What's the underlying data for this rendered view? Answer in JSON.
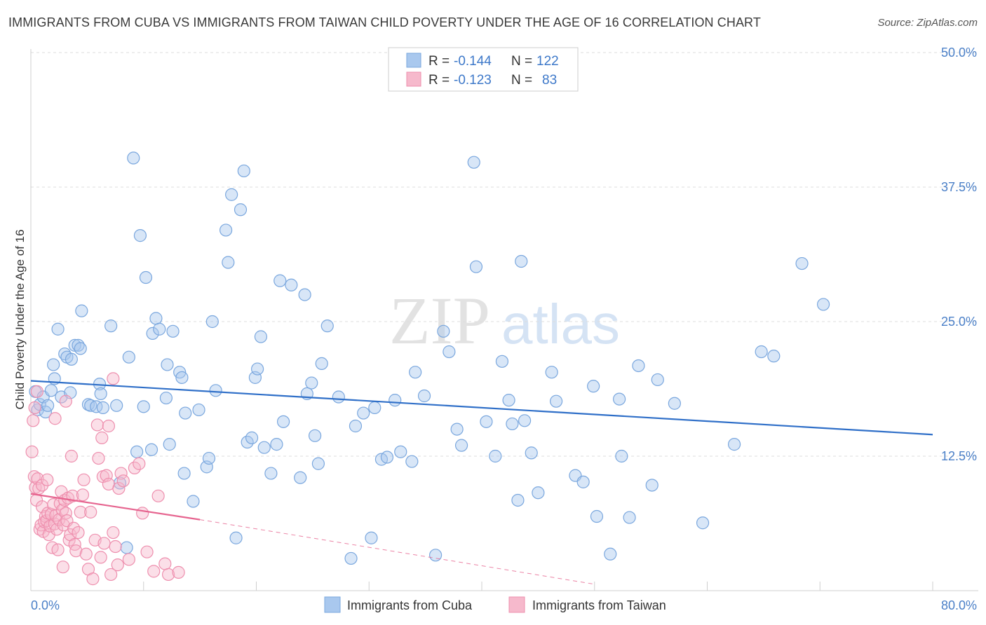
{
  "title": "IMMIGRANTS FROM CUBA VS IMMIGRANTS FROM TAIWAN CHILD POVERTY UNDER THE AGE OF 16 CORRELATION CHART",
  "source": "Source: ZipAtlas.com",
  "watermark": {
    "zip": "ZIP",
    "atlas": "atlas"
  },
  "colors": {
    "cuba_fill": "#a9c8ee",
    "cuba_stroke": "#7aa7de",
    "cuba_line": "#2f6fc8",
    "taiwan_fill": "#f6b9cc",
    "taiwan_stroke": "#ee8fae",
    "taiwan_line": "#e6648f",
    "axis_label": "#4a7fc7",
    "grid": "#dddddd"
  },
  "legend": {
    "rows": [
      {
        "r_label": "R =",
        "r_value": "-0.144",
        "n_label": "N =",
        "n_value": "122"
      },
      {
        "r_label": "R =",
        "r_value": "-0.123",
        "n_label": "N =",
        "n_value": "83"
      }
    ]
  },
  "chart_data": {
    "type": "scatter",
    "title": "IMMIGRANTS FROM CUBA VS IMMIGRANTS FROM TAIWAN CHILD POVERTY UNDER THE AGE OF 16 CORRELATION CHART",
    "xlabel": "",
    "ylabel": "Child Poverty Under the Age of 16",
    "xlim": [
      0,
      80
    ],
    "ylim": [
      0,
      50
    ],
    "x_tick_labels": [
      "0.0%",
      "80.0%"
    ],
    "y_ticks": [
      12.5,
      25.0,
      37.5,
      50.0
    ],
    "y_tick_labels": [
      "12.5%",
      "25.0%",
      "37.5%",
      "50.0%"
    ],
    "grid": true,
    "legend_position": "bottom",
    "series": [
      {
        "name": "Immigrants from Cuba",
        "r": -0.144,
        "n": 122,
        "trend": {
          "x0": 0,
          "y0": 19.5,
          "x1": 80,
          "y1": 14.5
        },
        "points": [
          [
            0.4,
            18.5
          ],
          [
            0.6,
            16.8
          ],
          [
            0.8,
            17.3
          ],
          [
            1.1,
            18.0
          ],
          [
            1.3,
            16.6
          ],
          [
            1.5,
            17.2
          ],
          [
            1.8,
            18.6
          ],
          [
            2.1,
            19.7
          ],
          [
            2.0,
            21.0
          ],
          [
            2.4,
            24.3
          ],
          [
            2.7,
            18.0
          ],
          [
            3.0,
            22.0
          ],
          [
            3.2,
            21.7
          ],
          [
            3.5,
            18.4
          ],
          [
            3.6,
            21.5
          ],
          [
            3.9,
            22.8
          ],
          [
            4.2,
            22.8
          ],
          [
            4.4,
            22.5
          ],
          [
            4.5,
            26.0
          ],
          [
            5.1,
            17.3
          ],
          [
            5.3,
            17.2
          ],
          [
            5.8,
            17.1
          ],
          [
            6.1,
            19.2
          ],
          [
            6.2,
            18.3
          ],
          [
            6.4,
            17.0
          ],
          [
            7.1,
            24.6
          ],
          [
            7.6,
            17.2
          ],
          [
            7.9,
            10.0
          ],
          [
            8.5,
            4.0
          ],
          [
            8.7,
            21.7
          ],
          [
            9.1,
            40.2
          ],
          [
            9.4,
            12.9
          ],
          [
            9.7,
            33.0
          ],
          [
            10.0,
            17.1
          ],
          [
            10.2,
            29.1
          ],
          [
            10.7,
            13.1
          ],
          [
            10.8,
            23.9
          ],
          [
            11.1,
            25.3
          ],
          [
            11.4,
            24.3
          ],
          [
            12.0,
            17.9
          ],
          [
            12.1,
            21.0
          ],
          [
            12.3,
            13.6
          ],
          [
            12.6,
            24.1
          ],
          [
            13.2,
            20.3
          ],
          [
            13.4,
            19.8
          ],
          [
            13.6,
            10.9
          ],
          [
            13.7,
            16.5
          ],
          [
            14.4,
            8.3
          ],
          [
            14.9,
            16.8
          ],
          [
            15.6,
            11.5
          ],
          [
            15.8,
            12.3
          ],
          [
            16.1,
            25.0
          ],
          [
            16.4,
            18.6
          ],
          [
            17.3,
            33.5
          ],
          [
            17.5,
            30.5
          ],
          [
            17.8,
            36.8
          ],
          [
            18.2,
            4.9
          ],
          [
            18.6,
            35.4
          ],
          [
            18.9,
            39.0
          ],
          [
            19.2,
            13.8
          ],
          [
            19.6,
            14.2
          ],
          [
            19.9,
            19.8
          ],
          [
            20.1,
            20.6
          ],
          [
            20.4,
            23.6
          ],
          [
            20.7,
            13.3
          ],
          [
            21.3,
            10.9
          ],
          [
            21.8,
            13.6
          ],
          [
            22.1,
            28.8
          ],
          [
            22.4,
            15.7
          ],
          [
            23.1,
            28.4
          ],
          [
            23.9,
            10.5
          ],
          [
            24.3,
            27.5
          ],
          [
            24.5,
            18.3
          ],
          [
            24.9,
            19.3
          ],
          [
            25.2,
            14.4
          ],
          [
            25.5,
            11.8
          ],
          [
            25.8,
            21.1
          ],
          [
            26.3,
            24.6
          ],
          [
            27.3,
            18.0
          ],
          [
            28.4,
            3.0
          ],
          [
            28.8,
            15.3
          ],
          [
            29.5,
            16.5
          ],
          [
            30.2,
            4.9
          ],
          [
            30.5,
            17.0
          ],
          [
            31.1,
            12.2
          ],
          [
            31.6,
            12.4
          ],
          [
            32.3,
            17.7
          ],
          [
            32.8,
            12.9
          ],
          [
            33.8,
            12.0
          ],
          [
            34.1,
            20.3
          ],
          [
            34.9,
            18.1
          ],
          [
            35.9,
            3.3
          ],
          [
            36.6,
            24.1
          ],
          [
            37.1,
            22.2
          ],
          [
            37.8,
            15.0
          ],
          [
            38.2,
            13.5
          ],
          [
            39.3,
            39.8
          ],
          [
            39.5,
            30.1
          ],
          [
            40.4,
            15.7
          ],
          [
            41.2,
            12.5
          ],
          [
            41.8,
            21.3
          ],
          [
            42.4,
            17.7
          ],
          [
            42.7,
            15.5
          ],
          [
            43.2,
            8.4
          ],
          [
            43.5,
            30.6
          ],
          [
            43.8,
            15.8
          ],
          [
            44.4,
            12.8
          ],
          [
            45.0,
            9.1
          ],
          [
            46.2,
            20.3
          ],
          [
            46.6,
            17.6
          ],
          [
            48.3,
            10.7
          ],
          [
            49.0,
            10.1
          ],
          [
            49.9,
            19.0
          ],
          [
            50.2,
            6.9
          ],
          [
            51.4,
            3.4
          ],
          [
            52.2,
            17.8
          ],
          [
            52.4,
            12.5
          ],
          [
            53.1,
            6.8
          ],
          [
            53.9,
            20.9
          ],
          [
            55.1,
            9.8
          ],
          [
            55.6,
            19.6
          ],
          [
            57.1,
            17.4
          ],
          [
            59.6,
            6.3
          ],
          [
            62.4,
            13.6
          ],
          [
            64.8,
            22.2
          ],
          [
            65.9,
            21.8
          ],
          [
            68.4,
            30.4
          ],
          [
            70.3,
            26.6
          ]
        ]
      },
      {
        "name": "Immigrants from Taiwan",
        "r": -0.123,
        "n": 83,
        "trend": {
          "x0": 0,
          "y0": 9.0,
          "x1": 15.0,
          "y1": 6.6,
          "dash_x1": 50.0,
          "dash_y1": 0.6
        },
        "points": [
          [
            0.1,
            12.9
          ],
          [
            0.2,
            15.8
          ],
          [
            0.3,
            10.6
          ],
          [
            0.4,
            9.6
          ],
          [
            0.5,
            8.4
          ],
          [
            0.6,
            10.4
          ],
          [
            0.7,
            9.5
          ],
          [
            0.8,
            5.7
          ],
          [
            0.9,
            6.1
          ],
          [
            1.0,
            7.8
          ],
          [
            1.1,
            5.5
          ],
          [
            1.2,
            6.4
          ],
          [
            1.3,
            6.9
          ],
          [
            1.4,
            6.5
          ],
          [
            1.5,
            7.2
          ],
          [
            1.6,
            5.2
          ],
          [
            1.7,
            6.0
          ],
          [
            1.8,
            7.1
          ],
          [
            1.9,
            4.0
          ],
          [
            2.0,
            8.0
          ],
          [
            2.1,
            6.2
          ],
          [
            2.2,
            7.0
          ],
          [
            2.3,
            5.7
          ],
          [
            2.4,
            3.8
          ],
          [
            2.5,
            6.6
          ],
          [
            2.6,
            8.1
          ],
          [
            2.7,
            9.2
          ],
          [
            2.8,
            7.5
          ],
          [
            2.9,
            6.1
          ],
          [
            3.0,
            8.4
          ],
          [
            3.1,
            7.2
          ],
          [
            3.2,
            6.5
          ],
          [
            3.3,
            8.6
          ],
          [
            3.4,
            4.7
          ],
          [
            3.5,
            5.2
          ],
          [
            3.6,
            12.5
          ],
          [
            3.7,
            8.8
          ],
          [
            3.8,
            5.8
          ],
          [
            3.9,
            4.3
          ],
          [
            4.0,
            3.7
          ],
          [
            4.2,
            5.4
          ],
          [
            4.4,
            7.3
          ],
          [
            4.6,
            8.9
          ],
          [
            4.7,
            10.3
          ],
          [
            4.9,
            3.4
          ],
          [
            5.1,
            2.0
          ],
          [
            5.3,
            7.3
          ],
          [
            5.5,
            1.1
          ],
          [
            5.7,
            4.7
          ],
          [
            5.9,
            15.4
          ],
          [
            6.0,
            12.3
          ],
          [
            6.2,
            3.1
          ],
          [
            6.4,
            10.6
          ],
          [
            6.5,
            4.4
          ],
          [
            6.7,
            10.7
          ],
          [
            6.9,
            9.9
          ],
          [
            7.1,
            1.5
          ],
          [
            7.3,
            5.4
          ],
          [
            7.5,
            4.1
          ],
          [
            7.7,
            2.4
          ],
          [
            7.8,
            9.5
          ],
          [
            8.0,
            10.9
          ],
          [
            8.2,
            10.2
          ],
          [
            8.7,
            2.9
          ],
          [
            9.2,
            11.4
          ],
          [
            9.6,
            11.8
          ],
          [
            9.9,
            7.2
          ],
          [
            10.3,
            3.6
          ],
          [
            10.9,
            1.8
          ],
          [
            11.3,
            8.8
          ],
          [
            11.9,
            2.5
          ],
          [
            12.2,
            1.5
          ],
          [
            13.1,
            1.7
          ],
          [
            0.35,
            17.0
          ],
          [
            0.55,
            18.5
          ],
          [
            2.15,
            16.0
          ],
          [
            3.1,
            17.6
          ],
          [
            6.3,
            14.2
          ],
          [
            6.9,
            15.3
          ],
          [
            7.3,
            19.7
          ],
          [
            1.0,
            9.8
          ],
          [
            1.45,
            10.3
          ],
          [
            2.85,
            2.2
          ]
        ]
      }
    ]
  },
  "bottom_legend": {
    "items": [
      {
        "label": "Immigrants from Cuba"
      },
      {
        "label": "Immigrants from Taiwan"
      }
    ]
  }
}
